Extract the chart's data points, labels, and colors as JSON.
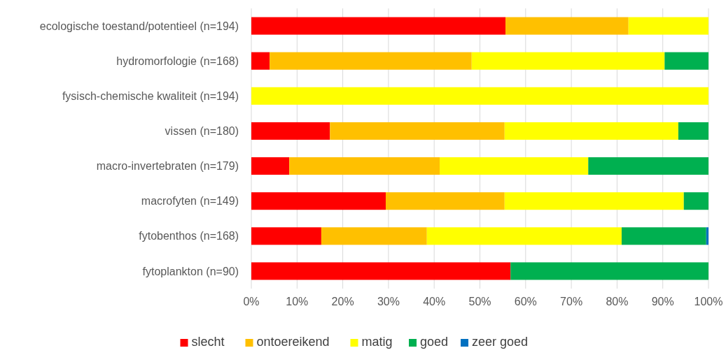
{
  "chart_data": {
    "type": "bar",
    "orientation": "horizontal",
    "stacked": true,
    "categories": [
      "ecologische toestand/potentieel (n=194)",
      "hydromorfologie (n=168)",
      "fysisch-chemische kwaliteit (n=194)",
      "vissen (n=180)",
      "macro-invertebraten (n=179)",
      "macrofyten (n=149)",
      "fytobenthos (n=168)",
      "fytoplankton (n=90)"
    ],
    "series": [
      {
        "name": "slecht",
        "color": "#ff0000",
        "values": [
          55.6,
          4.0,
          0,
          17.2,
          8.3,
          29.4,
          15.3,
          56.7
        ]
      },
      {
        "name": "ontoereikend",
        "color": "#ffc000",
        "values": [
          26.9,
          44.2,
          0,
          38.2,
          32.9,
          26.0,
          23.1,
          0
        ]
      },
      {
        "name": "matig",
        "color": "#ffff00",
        "values": [
          17.5,
          42.2,
          100,
          38.0,
          32.5,
          39.2,
          42.6,
          0
        ]
      },
      {
        "name": "goed",
        "color": "#00b050",
        "values": [
          0,
          9.6,
          0,
          6.6,
          26.3,
          5.4,
          18.5,
          43.3
        ]
      },
      {
        "name": "zeer goed",
        "color": "#0070c0",
        "values": [
          0,
          0,
          0,
          0,
          0,
          0,
          0.5,
          0
        ]
      }
    ],
    "xlim": [
      0,
      100
    ],
    "xticks": [
      {
        "value": 0,
        "label": "0%"
      },
      {
        "value": 10,
        "label": "10%"
      },
      {
        "value": 20,
        "label": "20%"
      },
      {
        "value": 30,
        "label": "30%"
      },
      {
        "value": 40,
        "label": "40%"
      },
      {
        "value": 50,
        "label": "50%"
      },
      {
        "value": 60,
        "label": "60%"
      },
      {
        "value": 70,
        "label": "70%"
      },
      {
        "value": 80,
        "label": "80%"
      },
      {
        "value": 90,
        "label": "90%"
      },
      {
        "value": 100,
        "label": "100%"
      }
    ],
    "grid": "x",
    "legend": "bottom"
  }
}
